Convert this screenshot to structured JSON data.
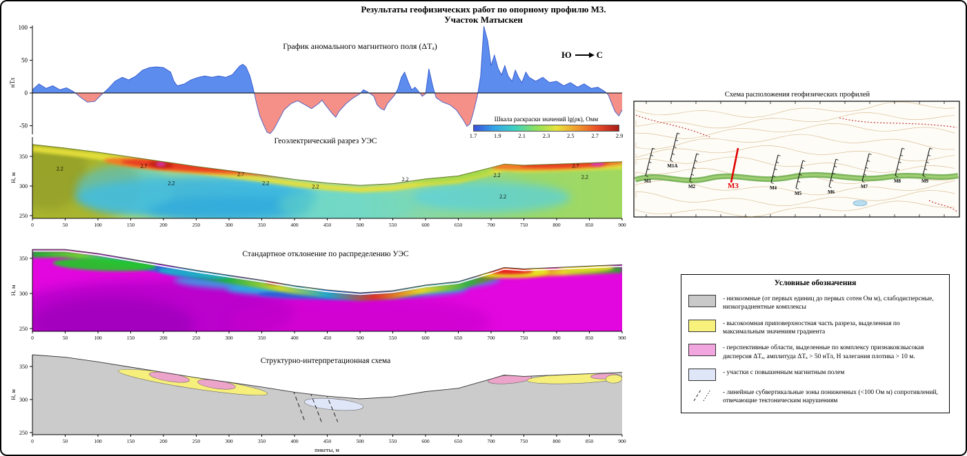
{
  "figure_title": {
    "line1": "Результаты геофизических работ по опорному профилю М3.",
    "line2": "Участок Матыскен"
  },
  "legend": {
    "title": "Условные обозначения",
    "items": [
      {
        "swatch": "#c9c9c9",
        "label": "- низкоомные (от первых единиц до первых сотен Ом м), слабодисперсные, низкоградиентные комплексы"
      },
      {
        "swatch": "#f8f27c",
        "label": "- высокоомная приповерхностная часть разреза, выделенная по максимальным значениям градиента"
      },
      {
        "swatch": "#f2a6e0",
        "label": "- перспективные области, выделенные по комплексу признаков:высокая дисперсия ΔTₐ, амплитуда ΔTₐ > 50 нТл, Н залегания плотика > 10 м."
      },
      {
        "swatch": "#dfe6f7",
        "label": "- участки с повышенным магнитным полем"
      },
      {
        "swatch": "fault",
        "label": "- линейные субвертикальные зоны пониженных (<100 Ом м) сопротивлений, отвечающие тектоническим нарушениям"
      }
    ]
  },
  "chart_data": [
    {
      "id": "magnetic",
      "type": "area",
      "title": "График аномального магнитного поля (ΔTₐ)",
      "ylabel": "нТл",
      "xlim": [
        0,
        900
      ],
      "ylim": [
        -75,
        110
      ],
      "yticks": [
        100,
        50,
        0,
        -50
      ],
      "direction": {
        "left": "Ю",
        "right": "С"
      },
      "positive_fill": "#5b8cee",
      "negative_fill": "#f59089",
      "line_color": "#2b50c8",
      "points": [
        [
          0,
          5
        ],
        [
          10,
          14
        ],
        [
          21,
          7
        ],
        [
          31,
          11
        ],
        [
          42,
          5
        ],
        [
          52,
          8
        ],
        [
          63,
          2
        ],
        [
          74,
          -7
        ],
        [
          84,
          -14
        ],
        [
          95,
          -13
        ],
        [
          105,
          -3
        ],
        [
          116,
          7
        ],
        [
          126,
          18
        ],
        [
          137,
          24
        ],
        [
          147,
          20
        ],
        [
          158,
          26
        ],
        [
          168,
          35
        ],
        [
          179,
          39
        ],
        [
          189,
          40
        ],
        [
          200,
          39
        ],
        [
          211,
          32
        ],
        [
          216,
          18
        ],
        [
          221,
          11
        ],
        [
          232,
          14
        ],
        [
          242,
          20
        ],
        [
          253,
          24
        ],
        [
          263,
          26
        ],
        [
          274,
          24
        ],
        [
          284,
          26
        ],
        [
          295,
          24
        ],
        [
          305,
          28
        ],
        [
          316,
          41
        ],
        [
          321,
          44
        ],
        [
          326,
          40
        ],
        [
          332,
          26
        ],
        [
          337,
          7
        ],
        [
          342,
          -16
        ],
        [
          347,
          -35
        ],
        [
          353,
          -49
        ],
        [
          358,
          -60
        ],
        [
          363,
          -62
        ],
        [
          368,
          -56
        ],
        [
          374,
          -45
        ],
        [
          384,
          -26
        ],
        [
          395,
          -16
        ],
        [
          405,
          -12
        ],
        [
          416,
          -18
        ],
        [
          426,
          -24
        ],
        [
          437,
          -16
        ],
        [
          442,
          -11
        ],
        [
          447,
          -18
        ],
        [
          458,
          -32
        ],
        [
          463,
          -37
        ],
        [
          468,
          -28
        ],
        [
          479,
          -16
        ],
        [
          489,
          -8
        ],
        [
          500,
          -1
        ],
        [
          505,
          5
        ],
        [
          511,
          2
        ],
        [
          521,
          -5
        ],
        [
          526,
          -18
        ],
        [
          532,
          -24
        ],
        [
          537,
          -26
        ],
        [
          542,
          -16
        ],
        [
          553,
          -3
        ],
        [
          558,
          7
        ],
        [
          563,
          24
        ],
        [
          568,
          32
        ],
        [
          574,
          16
        ],
        [
          579,
          5
        ],
        [
          584,
          9
        ],
        [
          589,
          3
        ],
        [
          595,
          -5
        ],
        [
          600,
          -1
        ],
        [
          605,
          37
        ],
        [
          611,
          11
        ],
        [
          616,
          -7
        ],
        [
          626,
          -14
        ],
        [
          637,
          -18
        ],
        [
          647,
          -26
        ],
        [
          658,
          -42
        ],
        [
          663,
          -51
        ],
        [
          668,
          -47
        ],
        [
          674,
          -26
        ],
        [
          679,
          -5
        ],
        [
          684,
          26
        ],
        [
          689,
          102
        ],
        [
          695,
          79
        ],
        [
          700,
          42
        ],
        [
          705,
          58
        ],
        [
          711,
          37
        ],
        [
          716,
          28
        ],
        [
          721,
          42
        ],
        [
          726,
          26
        ],
        [
          732,
          18
        ],
        [
          737,
          35
        ],
        [
          742,
          24
        ],
        [
          747,
          16
        ],
        [
          753,
          32
        ],
        [
          758,
          24
        ],
        [
          768,
          18
        ],
        [
          779,
          24
        ],
        [
          789,
          16
        ],
        [
          800,
          18
        ],
        [
          811,
          11
        ],
        [
          821,
          16
        ],
        [
          832,
          9
        ],
        [
          842,
          14
        ],
        [
          853,
          7
        ],
        [
          863,
          9
        ],
        [
          874,
          2
        ],
        [
          879,
          -3
        ],
        [
          884,
          -16
        ],
        [
          889,
          -28
        ],
        [
          895,
          -35
        ],
        [
          900,
          -26
        ]
      ]
    },
    {
      "id": "geoelectric",
      "type": "heatmap",
      "title": "Геоэлектрический разрез УЭС",
      "ylabel": "Н, м",
      "xlim": [
        0,
        900
      ],
      "yticks": [
        350,
        300,
        250
      ],
      "xtick_step": 50,
      "colorscale": {
        "title": "Шкала раскраски значений lg(ρк), Омм",
        "ticks": [
          1.7,
          1.9,
          2.1,
          2.3,
          2.5,
          2.7,
          2.9
        ],
        "colors": [
          "#3a50d8",
          "#35a4e8",
          "#3fd2c0",
          "#8ce05c",
          "#e8e23c",
          "#f09a2c",
          "#e84b28",
          "#a81c18"
        ]
      },
      "surface_profile": [
        [
          0,
          370
        ],
        [
          50,
          364
        ],
        [
          100,
          357
        ],
        [
          150,
          349
        ],
        [
          200,
          341
        ],
        [
          250,
          333
        ],
        [
          300,
          326
        ],
        [
          350,
          319
        ],
        [
          400,
          311
        ],
        [
          450,
          305
        ],
        [
          500,
          301
        ],
        [
          550,
          304
        ],
        [
          600,
          312
        ],
        [
          650,
          317
        ],
        [
          700,
          331
        ],
        [
          720,
          337
        ],
        [
          750,
          335
        ],
        [
          800,
          337
        ],
        [
          850,
          339
        ],
        [
          900,
          341
        ]
      ],
      "contour_labels": [
        {
          "x": 42,
          "elev": 326,
          "v": "2.2"
        },
        {
          "x": 170,
          "elev": 330,
          "v": "2.7"
        },
        {
          "x": 212,
          "elev": 302,
          "v": "2.2"
        },
        {
          "x": 318,
          "elev": 317,
          "v": "2.7"
        },
        {
          "x": 356,
          "elev": 302,
          "v": "2.2"
        },
        {
          "x": 432,
          "elev": 296,
          "v": "2.2"
        },
        {
          "x": 569,
          "elev": 308,
          "v": "2.2"
        },
        {
          "x": 709,
          "elev": 315,
          "v": "2.2"
        },
        {
          "x": 718,
          "elev": 279,
          "v": "2.2"
        },
        {
          "x": 829,
          "elev": 331,
          "v": "2.7"
        },
        {
          "x": 843,
          "elev": 312,
          "v": "2.2"
        }
      ]
    },
    {
      "id": "stddev",
      "type": "heatmap",
      "title": "Стандартное отклонение по распределению УЭС",
      "ylabel": "Н, м",
      "xlim": [
        0,
        900
      ],
      "yticks": [
        350,
        300,
        250
      ],
      "xtick_step": 50
    },
    {
      "id": "structural",
      "type": "section",
      "title": "Структурно-интерпретационная схема",
      "ylabel": "Н, м",
      "xlabel": "пикеты, м",
      "xlim": [
        0,
        900
      ],
      "yticks": [
        350,
        300,
        250
      ],
      "xtick_step": 50,
      "zones": [
        {
          "color": "#f6ef7b",
          "from": 130,
          "to": 360,
          "th": 9
        },
        {
          "color": "#eda4cb",
          "from": 178,
          "to": 240,
          "th": 6
        },
        {
          "color": "#eda4cb",
          "from": 252,
          "to": 310,
          "th": 6
        },
        {
          "color": "#dfe6f7",
          "from": 415,
          "to": 505,
          "th": 8,
          "drop": 11
        },
        {
          "color": "#eda4cb",
          "from": 695,
          "to": 762,
          "th": 6
        },
        {
          "color": "#f6ef7b",
          "from": 755,
          "to": 900,
          "th": 7
        },
        {
          "color": "#eda4cb",
          "from": 852,
          "to": 895,
          "th": 4
        },
        {
          "color": "#f6ef7b",
          "from": 875,
          "to": 900,
          "th": 6,
          "drop": 9
        }
      ],
      "faults": [
        [
          398,
          314,
          416,
          266
        ],
        [
          424,
          311,
          442,
          264
        ],
        [
          448,
          309,
          466,
          266
        ]
      ]
    },
    {
      "id": "map",
      "type": "map",
      "title": "Схема расположения геофизических профилей",
      "profiles": [
        {
          "label": "М1",
          "x": 22,
          "y": 118
        },
        {
          "label": "М1А",
          "x": 58,
          "y": 96
        },
        {
          "label": "М2",
          "x": 86,
          "y": 126
        },
        {
          "label": "М3",
          "x": 146,
          "y": 126,
          "highlight": true
        },
        {
          "label": "М4",
          "x": 204,
          "y": 128
        },
        {
          "label": "М5",
          "x": 240,
          "y": 136
        },
        {
          "label": "М6",
          "x": 288,
          "y": 134
        },
        {
          "label": "М7",
          "x": 336,
          "y": 126
        },
        {
          "label": "М8",
          "x": 384,
          "y": 118
        },
        {
          "label": "М9",
          "x": 424,
          "y": 118
        }
      ]
    }
  ]
}
